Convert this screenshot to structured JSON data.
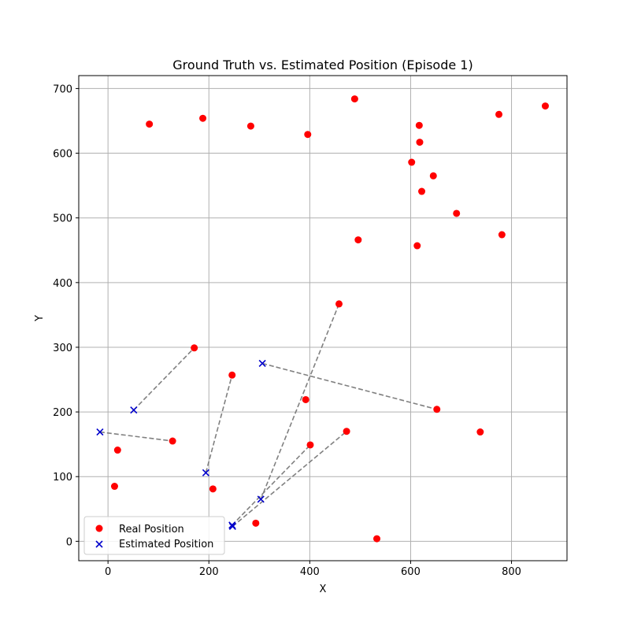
{
  "chart_data": {
    "type": "scatter",
    "title": "Ground Truth vs. Estimated Position (Episode 1)",
    "xlabel": "X",
    "ylabel": "Y",
    "xlim": [
      -58,
      910
    ],
    "ylim": [
      -30,
      720
    ],
    "xticks": [
      0,
      200,
      400,
      600,
      800
    ],
    "yticks": [
      0,
      100,
      200,
      300,
      400,
      500,
      600,
      700
    ],
    "grid": true,
    "legend_position": "lower-left",
    "colors": {
      "real": "#ff0000",
      "estimated": "#0000cc",
      "connector": "#808080"
    },
    "series": [
      {
        "name": "Real Position",
        "marker": "circle",
        "points": [
          [
            82,
            645
          ],
          [
            188,
            654
          ],
          [
            283,
            642
          ],
          [
            396,
            629
          ],
          [
            489,
            684
          ],
          [
            617,
            643
          ],
          [
            618,
            617
          ],
          [
            602,
            586
          ],
          [
            645,
            565
          ],
          [
            622,
            541
          ],
          [
            775,
            660
          ],
          [
            867,
            673
          ],
          [
            691,
            507
          ],
          [
            781,
            474
          ],
          [
            496,
            466
          ],
          [
            613,
            457
          ],
          [
            458,
            367
          ],
          [
            171,
            299
          ],
          [
            246,
            257
          ],
          [
            392,
            219
          ],
          [
            652,
            204
          ],
          [
            738,
            169
          ],
          [
            473,
            170
          ],
          [
            401,
            149
          ],
          [
            19,
            141
          ],
          [
            128,
            155
          ],
          [
            13,
            85
          ],
          [
            208,
            81
          ],
          [
            293,
            28
          ],
          [
            533,
            4
          ]
        ]
      },
      {
        "name": "Estimated Position",
        "marker": "x",
        "points": [
          [
            51,
            203
          ],
          [
            -16,
            169
          ],
          [
            194,
            106
          ],
          [
            306,
            275
          ],
          [
            303,
            65
          ],
          [
            246,
            25
          ],
          [
            247,
            23
          ]
        ]
      }
    ],
    "connections": [
      [
        [
          51,
          203
        ],
        [
          171,
          299
        ]
      ],
      [
        [
          -16,
          169
        ],
        [
          128,
          155
        ]
      ],
      [
        [
          194,
          106
        ],
        [
          246,
          257
        ]
      ],
      [
        [
          306,
          275
        ],
        [
          652,
          204
        ]
      ],
      [
        [
          303,
          65
        ],
        [
          458,
          367
        ]
      ],
      [
        [
          246,
          25
        ],
        [
          401,
          149
        ]
      ],
      [
        [
          247,
          23
        ],
        [
          473,
          170
        ]
      ]
    ]
  }
}
